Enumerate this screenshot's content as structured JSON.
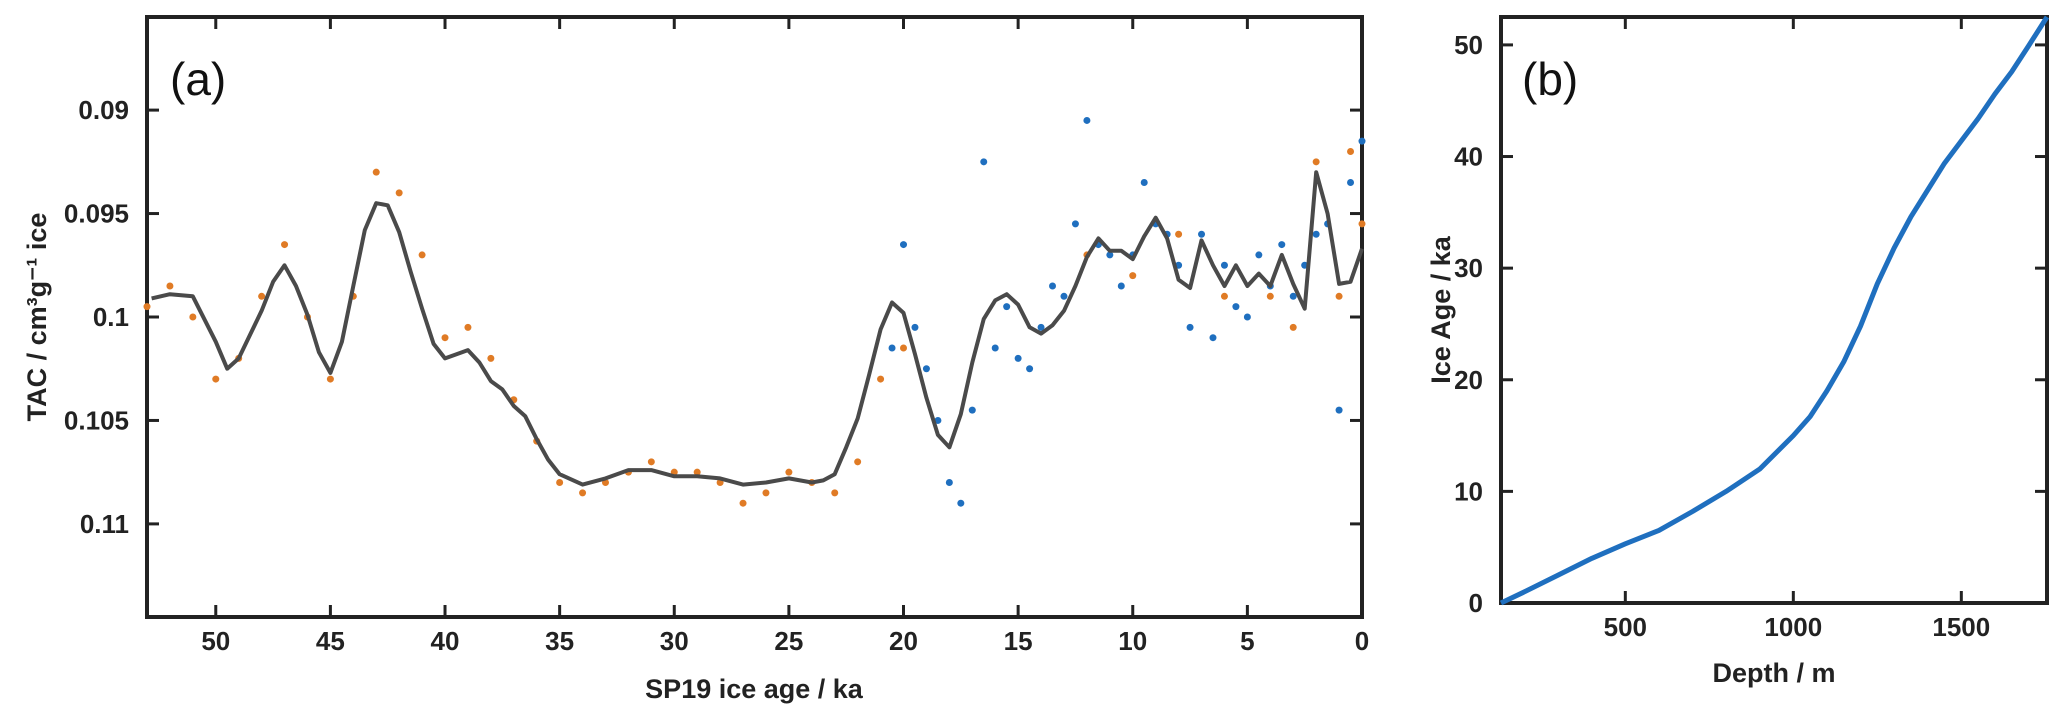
{
  "chart_data": [
    {
      "type": "scatter",
      "panel_label": "(a)",
      "xlabel": "SP19 ice age / ka",
      "ylabel": "TAC / cm³g⁻¹ ice",
      "xlim": [
        53,
        0
      ],
      "x_reversed": true,
      "ylim": [
        0.1145,
        0.0855
      ],
      "y_reversed": true,
      "xticks": [
        50,
        45,
        40,
        35,
        30,
        25,
        20,
        15,
        10,
        5,
        0
      ],
      "xtick_labels": [
        "50",
        "45",
        "40",
        "35",
        "30",
        "25",
        "20",
        "15",
        "10",
        "5",
        "0"
      ],
      "yticks": [
        0.09,
        0.095,
        0.1,
        0.105,
        0.11
      ],
      "ytick_labels": [
        "0.09",
        "0.095",
        "0.1",
        "0.105",
        "0.11"
      ],
      "grid": false,
      "series": [
        {
          "kind": "points",
          "color": "#E07B25",
          "x": [
            53,
            52,
            51,
            50,
            49,
            48,
            47,
            46,
            45,
            44,
            43,
            42,
            41,
            40,
            39,
            38,
            37,
            36,
            35,
            34,
            33,
            32,
            31,
            30,
            29,
            28,
            27,
            26,
            25,
            24,
            23,
            22,
            21,
            20,
            12,
            10,
            8,
            6,
            4,
            3,
            2,
            1,
            0.5,
            0
          ],
          "values": [
            0.0995,
            0.0985,
            0.1,
            0.103,
            0.102,
            0.099,
            0.0965,
            0.1,
            0.103,
            0.099,
            0.093,
            0.094,
            0.097,
            0.101,
            0.1005,
            0.102,
            0.104,
            0.106,
            0.108,
            0.1085,
            0.108,
            0.1075,
            0.107,
            0.1075,
            0.1075,
            0.108,
            0.109,
            0.1085,
            0.1075,
            0.108,
            0.1085,
            0.107,
            0.103,
            0.1015,
            0.097,
            0.098,
            0.096,
            0.099,
            0.099,
            0.1005,
            0.0925,
            0.099,
            0.092,
            0.0955
          ]
        },
        {
          "kind": "points",
          "color": "#1F6FBF",
          "x": [
            20.5,
            20,
            19.5,
            19,
            18.5,
            18,
            17.5,
            17,
            16.5,
            16,
            15.5,
            15,
            14.5,
            14,
            13.5,
            13,
            12.5,
            12,
            11.5,
            11,
            10.5,
            10,
            9.5,
            9,
            8.5,
            8,
            7.5,
            7,
            6.5,
            6,
            5.5,
            5,
            4.5,
            4,
            3.5,
            3,
            2.5,
            2,
            1.5,
            1,
            0.5,
            0
          ],
          "values": [
            0.1015,
            0.0965,
            0.1005,
            0.1025,
            0.105,
            0.108,
            0.109,
            0.1045,
            0.0925,
            0.1015,
            0.0995,
            0.102,
            0.1025,
            0.1005,
            0.0985,
            0.099,
            0.0955,
            0.0905,
            0.0965,
            0.097,
            0.0985,
            0.097,
            0.0935,
            0.0955,
            0.096,
            0.0975,
            0.1005,
            0.096,
            0.101,
            0.0975,
            0.0995,
            0.1,
            0.097,
            0.0985,
            0.0965,
            0.099,
            0.0975,
            0.096,
            0.0955,
            0.1045,
            0.0935,
            0.0915
          ]
        },
        {
          "kind": "line",
          "color": "#4A4A4A",
          "x": [
            52.8,
            52,
            51,
            50,
            49.5,
            49,
            48,
            47.5,
            47,
            46.5,
            46,
            45.5,
            45,
            44.5,
            44,
            43.5,
            43,
            42.5,
            42,
            41.5,
            41,
            40.5,
            40,
            39.5,
            39,
            38.5,
            38,
            37.5,
            37,
            36.5,
            36,
            35.5,
            35,
            34,
            33,
            32,
            31,
            30,
            29,
            28,
            27,
            26,
            25,
            24,
            23.5,
            23,
            22.5,
            22,
            21.5,
            21,
            20.5,
            20,
            19.5,
            19,
            18.5,
            18,
            17.5,
            17,
            16.5,
            16,
            15.5,
            15,
            14.5,
            14,
            13.5,
            13,
            12.5,
            12,
            11.5,
            11,
            10.5,
            10,
            9.5,
            9,
            8.5,
            8,
            7.5,
            7,
            6.5,
            6,
            5.5,
            5,
            4.5,
            4,
            3.5,
            3,
            2.5,
            2,
            1.5,
            1,
            0.5,
            0
          ],
          "values": [
            0.0991,
            0.0989,
            0.099,
            0.1012,
            0.1025,
            0.102,
            0.0997,
            0.0983,
            0.0975,
            0.0985,
            0.0999,
            0.1017,
            0.1027,
            0.1012,
            0.0985,
            0.0958,
            0.0945,
            0.0946,
            0.0959,
            0.0978,
            0.0996,
            0.1013,
            0.102,
            0.1018,
            0.1016,
            0.1022,
            0.1031,
            0.1035,
            0.1043,
            0.1048,
            0.1059,
            0.1069,
            0.1076,
            0.1081,
            0.1078,
            0.1074,
            0.1074,
            0.1077,
            0.1077,
            0.1078,
            0.1081,
            0.108,
            0.1078,
            0.108,
            0.1079,
            0.1076,
            0.1063,
            0.1049,
            0.1028,
            0.1006,
            0.0993,
            0.0998,
            0.1018,
            0.1039,
            0.1057,
            0.1063,
            0.1047,
            0.1022,
            0.1001,
            0.0992,
            0.0989,
            0.0994,
            0.1005,
            0.1008,
            0.1004,
            0.0997,
            0.0985,
            0.0971,
            0.0962,
            0.0968,
            0.0968,
            0.0972,
            0.0961,
            0.0952,
            0.0962,
            0.0982,
            0.0986,
            0.0963,
            0.0975,
            0.0985,
            0.0975,
            0.0985,
            0.0979,
            0.0985,
            0.097,
            0.0984,
            0.0996,
            0.093,
            0.095,
            0.0984,
            0.0983,
            0.0967
          ]
        }
      ]
    },
    {
      "type": "line",
      "panel_label": "(b)",
      "xlabel": "Depth / m",
      "ylabel": "Ice Age / ka",
      "xlim": [
        130,
        1755
      ],
      "ylim": [
        0,
        52.5
      ],
      "xticks": [
        500,
        1000,
        1500
      ],
      "xtick_labels": [
        "500",
        "1000",
        "1500"
      ],
      "yticks": [
        0,
        10,
        20,
        30,
        40,
        50
      ],
      "ytick_labels": [
        "0",
        "10",
        "20",
        "30",
        "40",
        "50"
      ],
      "grid": false,
      "series": [
        {
          "color": "#1F6FBF",
          "x": [
            130,
            200,
            300,
            400,
            500,
            600,
            700,
            800,
            900,
            1000,
            1050,
            1100,
            1150,
            1200,
            1250,
            1300,
            1350,
            1400,
            1450,
            1500,
            1550,
            1600,
            1650,
            1700,
            1755
          ],
          "values": [
            0,
            1,
            2.5,
            4,
            5.3,
            6.5,
            8.2,
            10,
            12,
            15,
            16.7,
            19,
            21.6,
            24.8,
            28.6,
            31.8,
            34.6,
            37,
            39.4,
            41.4,
            43.4,
            45.6,
            47.6,
            49.9,
            52.5
          ]
        }
      ]
    }
  ]
}
